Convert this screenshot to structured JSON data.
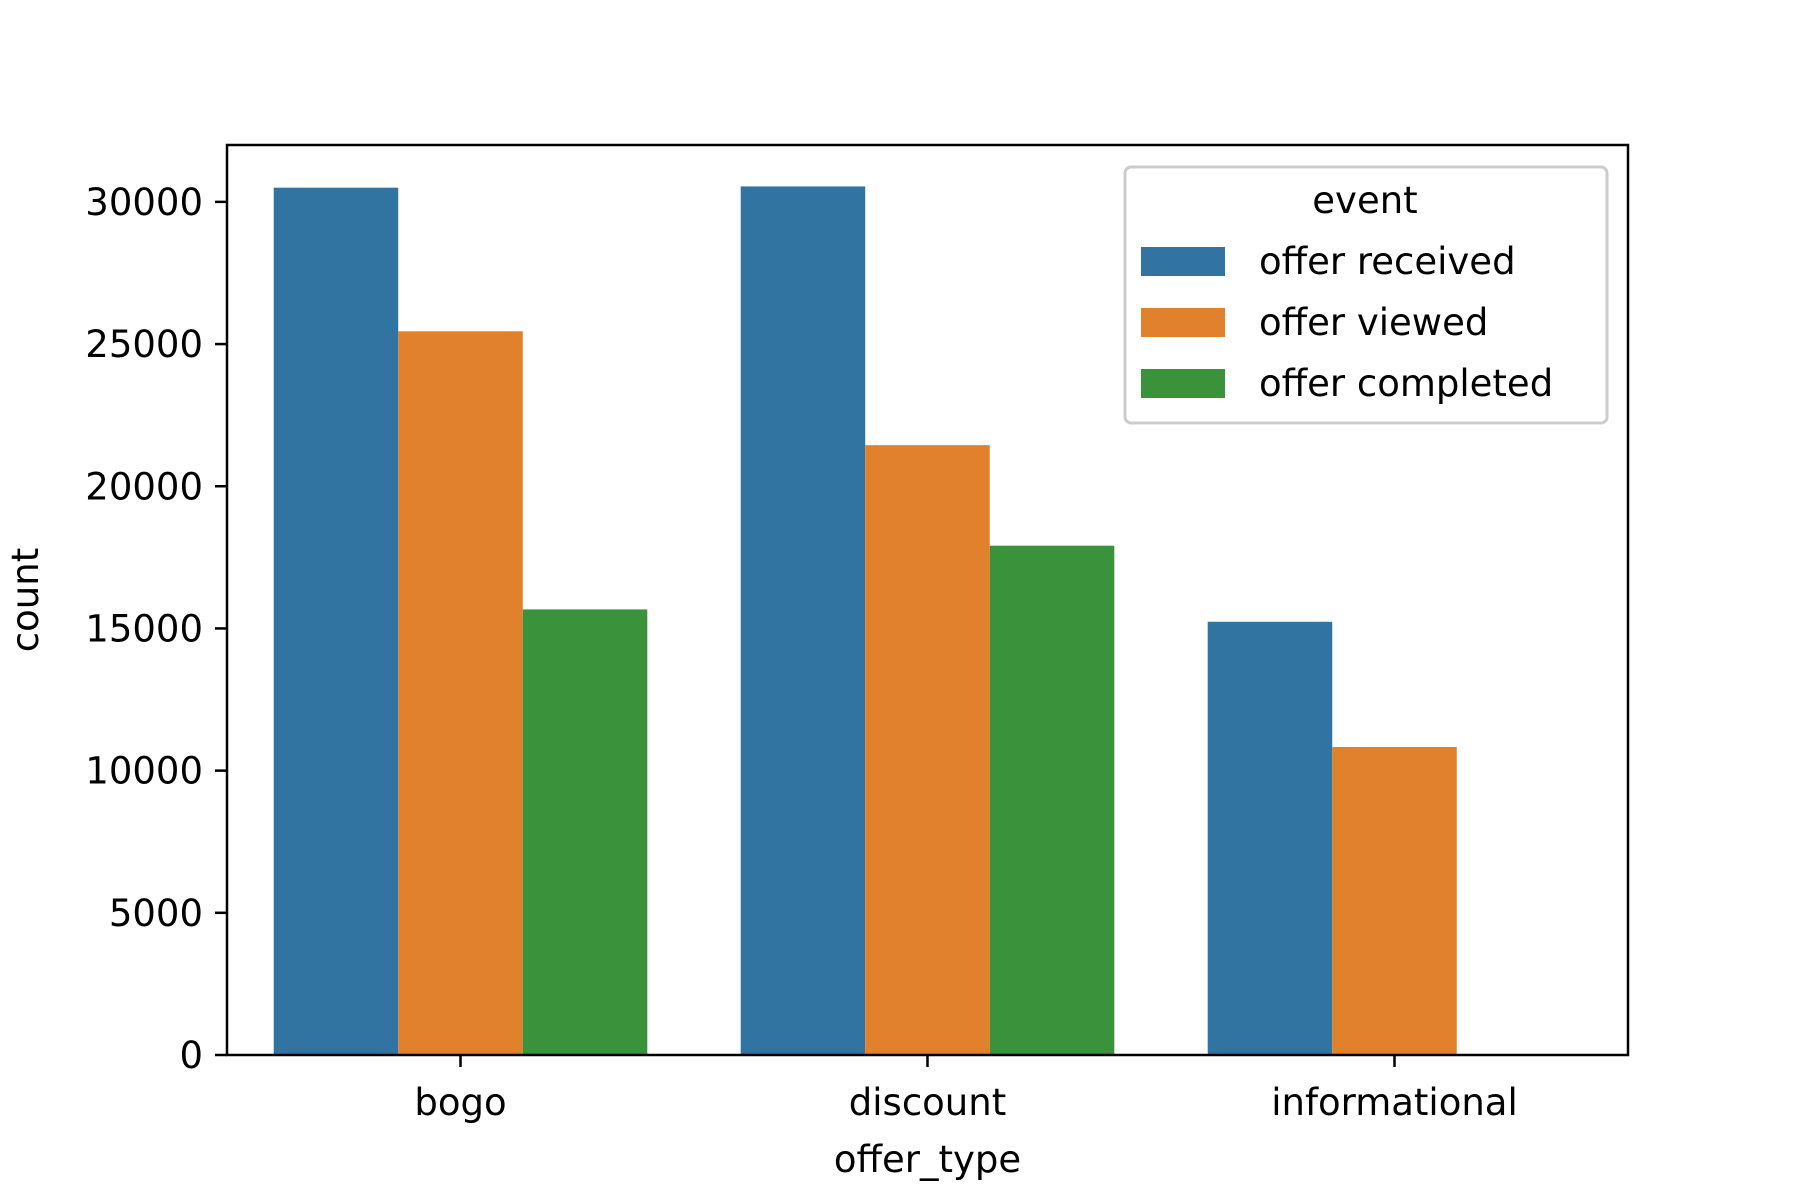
{
  "chart_data": {
    "type": "bar",
    "title": "",
    "xlabel": "offer_type",
    "ylabel": "count",
    "categories": [
      "bogo",
      "discount",
      "informational"
    ],
    "series": [
      {
        "name": "offer received",
        "color": "#3274a1",
        "values": [
          30499,
          30543,
          15235
        ]
      },
      {
        "name": "offer viewed",
        "color": "#e1812c",
        "values": [
          25449,
          21445,
          10831
        ]
      },
      {
        "name": "offer completed",
        "color": "#3a923a",
        "values": [
          15669,
          17910,
          0
        ]
      }
    ],
    "ylim": [
      0,
      32000
    ],
    "yticks": [
      0,
      5000,
      10000,
      15000,
      20000,
      25000,
      30000
    ],
    "legend": {
      "title": "event",
      "placement": "top-right"
    },
    "grid": false
  }
}
